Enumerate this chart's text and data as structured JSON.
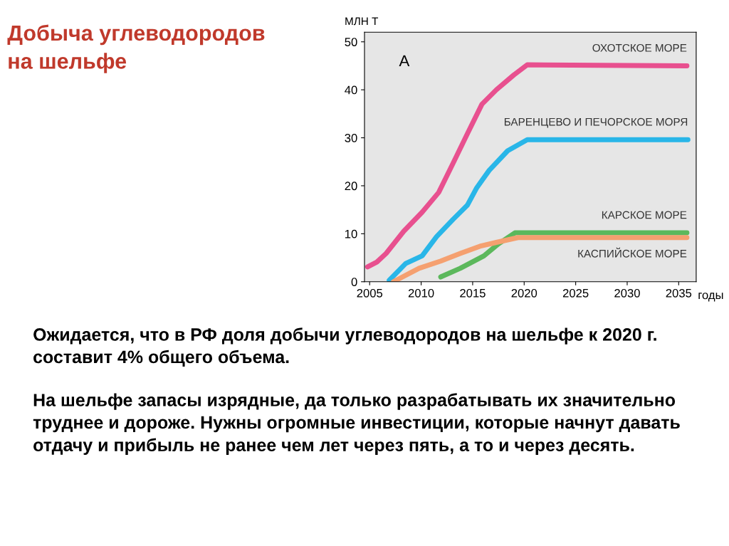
{
  "chart_data": {
    "type": "line",
    "title": "Добыча углеводородов\nна шельфе",
    "xlabel": "годы",
    "ylabel": "МЛН Т",
    "xlim": [
      2004.5,
      2036.7
    ],
    "ylim": [
      0,
      52
    ],
    "xticks": [
      2005,
      2010,
      2015,
      2020,
      2025,
      2030,
      2035
    ],
    "yticks": [
      0,
      10,
      20,
      30,
      40,
      50
    ],
    "grid": false,
    "legend": false,
    "line_style": "solid",
    "marker": "none",
    "series": [
      {
        "name": "ОХОТСКОЕ МОРЕ",
        "color": "#e8508f",
        "x": [
          2004.8,
          2005.7,
          2006.6,
          2008.3,
          2010.1,
          2011.7,
          2013.1,
          2014.5,
          2015.9,
          2017.3,
          2019.0,
          2020.3,
          2035.8
        ],
        "values": [
          3.1,
          4.1,
          5.9,
          10.5,
          14.5,
          18.6,
          24.7,
          30.9,
          37,
          40,
          43.1,
          45.2,
          45
        ]
      },
      {
        "name": "БАРЕНЦЕВО И ПЕЧОРСКОЕ МОРЯ",
        "color": "#29b6e8",
        "x": [
          2006.9,
          2008.5,
          2010.1,
          2011.5,
          2013.1,
          2014.5,
          2015.4,
          2016.6,
          2018.4,
          2020.3,
          2035.9
        ],
        "values": [
          0.3,
          3.8,
          5.4,
          9.4,
          13,
          16,
          19.6,
          23.2,
          27.3,
          29.6,
          29.6
        ]
      },
      {
        "name": "КАРСКОЕ МОРЕ",
        "color": "#5cb85c",
        "x": [
          2011.9,
          2013.8,
          2016.1,
          2017.5,
          2019.1,
          2035.8
        ],
        "values": [
          1.0,
          2.8,
          5.4,
          7.9,
          10.2,
          10.2
        ]
      },
      {
        "name": "КАСПИЙСКОЕ МОРЕ",
        "color": "#f5a070",
        "x": [
          2007.3,
          2009.8,
          2011.9,
          2013.8,
          2015.7,
          2017.3,
          2019.4,
          2035.8
        ],
        "values": [
          0,
          2.8,
          4.3,
          5.9,
          7.4,
          8.2,
          9.2,
          9.2
        ]
      }
    ],
    "annotations": [
      "А",
      "Ожидается, что в РФ доля добычи углеводородов на шельфе к 2020 г. составит 4% общего объема.",
      "На шельфе запасы изрядные, да только разрабатывать их значительно труднее и дороже. Нужны огромные инвестиции, которые начнут давать отдачу и прибыль не ранее чем лет через пять, а то и через десять."
    ]
  }
}
